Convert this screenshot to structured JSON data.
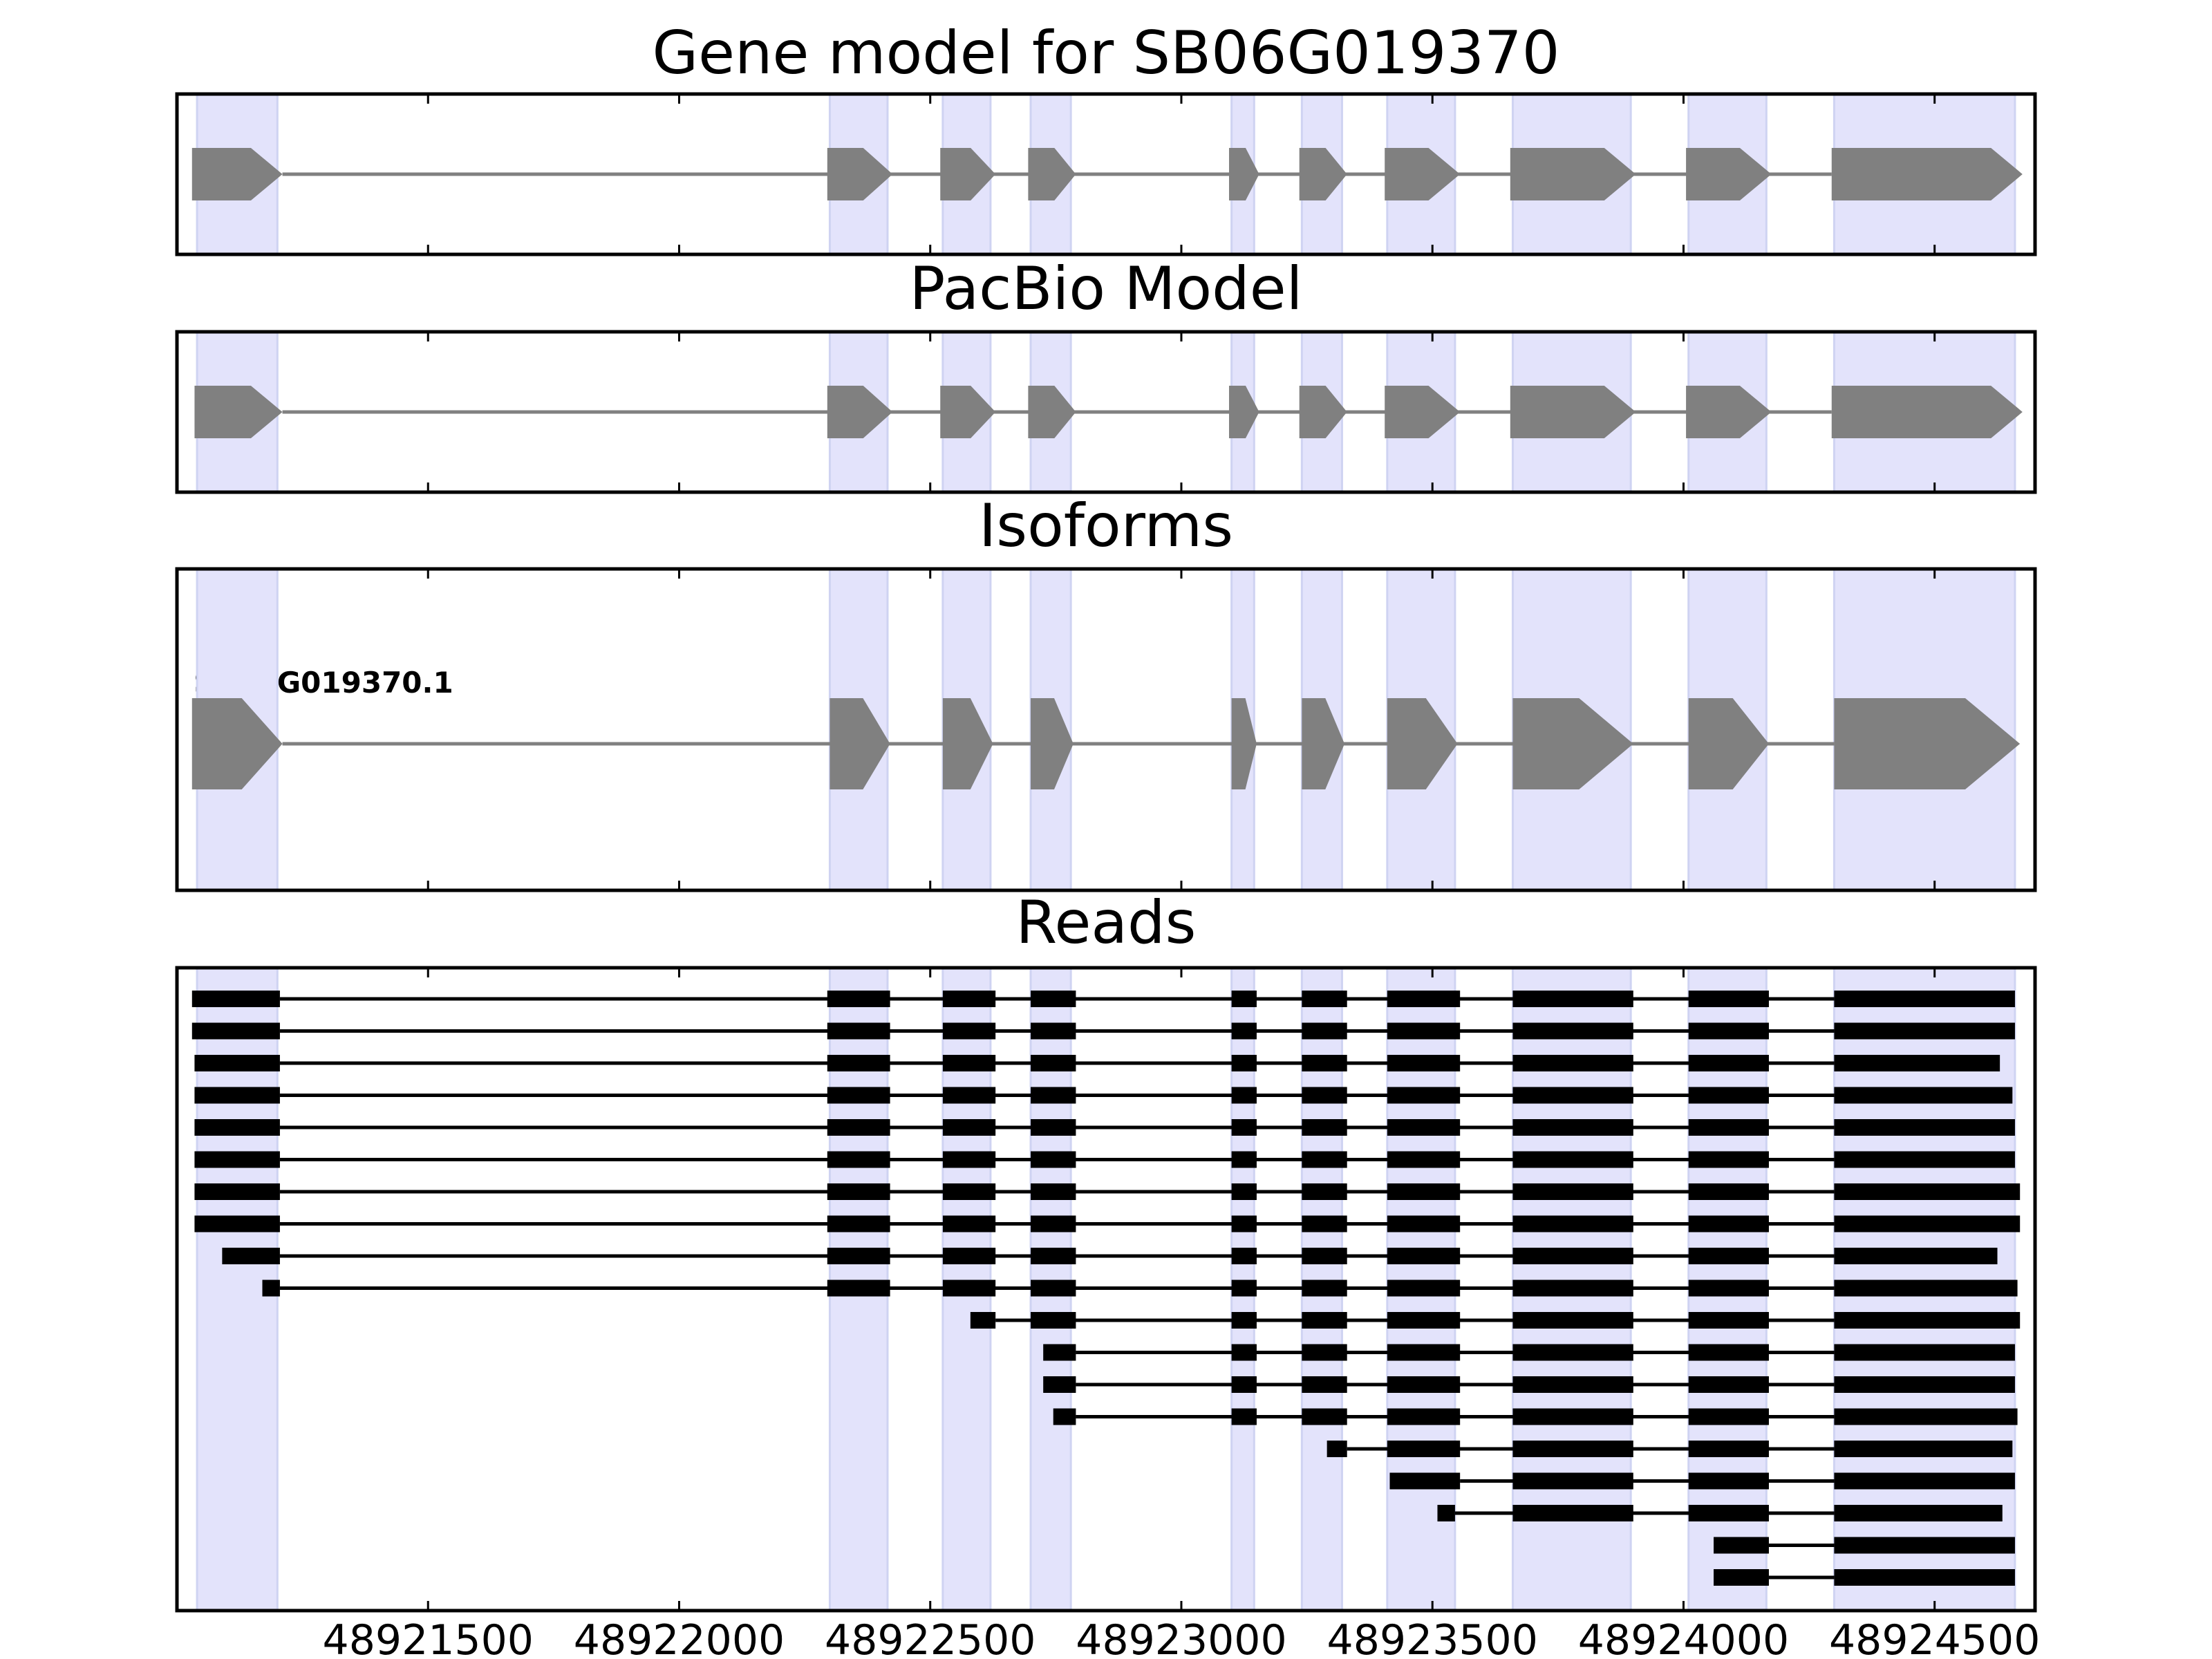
{
  "chart_data": {
    "type": "gene-structure",
    "x_ticks": [
      48921500,
      48922000,
      48922500,
      48923000,
      48923500,
      48924000,
      48924500
    ],
    "x_tick_labels": [
      "48921500",
      "48922000",
      "48922500",
      "48923000",
      "48923500",
      "48924000",
      "48924500"
    ],
    "highlight_regions": [
      [
        48921040,
        48921200
      ],
      [
        48922300,
        48922415
      ],
      [
        48922525,
        48922620
      ],
      [
        48922700,
        48922780
      ],
      [
        48923100,
        48923145
      ],
      [
        48923240,
        48923320
      ],
      [
        48923410,
        48923545
      ],
      [
        48923660,
        48923895
      ],
      [
        48924010,
        48924165
      ],
      [
        48924300,
        48924660
      ]
    ],
    "panels": [
      {
        "title": "Gene model for SB06G019370",
        "exons": [
          [
            48921030,
            48921210
          ],
          [
            48922295,
            48922425
          ],
          [
            48922520,
            48922630
          ],
          [
            48922695,
            48922790
          ],
          [
            48923095,
            48923155
          ],
          [
            48923235,
            48923330
          ],
          [
            48923405,
            48923555
          ],
          [
            48923655,
            48923905
          ],
          [
            48924005,
            48924175
          ],
          [
            48924295,
            48924675
          ]
        ]
      },
      {
        "title": "PacBio Model",
        "exons": [
          [
            48921035,
            48921210
          ],
          [
            48922295,
            48922425
          ],
          [
            48922520,
            48922630
          ],
          [
            48922695,
            48922790
          ],
          [
            48923095,
            48923155
          ],
          [
            48923235,
            48923330
          ],
          [
            48923405,
            48923555
          ],
          [
            48923655,
            48923905
          ],
          [
            48924005,
            48924175
          ],
          [
            48924295,
            48924675
          ]
        ]
      },
      {
        "title": "Isoforms",
        "isoform_label": "SB06G019370.1",
        "exons": [
          [
            48921030,
            48921210
          ],
          [
            48922300,
            48922420
          ],
          [
            48922525,
            48922625
          ],
          [
            48922700,
            48922785
          ],
          [
            48923100,
            48923150
          ],
          [
            48923240,
            48923325
          ],
          [
            48923410,
            48923550
          ],
          [
            48923660,
            48923900
          ],
          [
            48924010,
            48924170
          ],
          [
            48924300,
            48924670
          ]
        ]
      },
      {
        "title": "Reads",
        "reads": [
          [
            [
              48921030,
              48921205
            ],
            [
              48922295,
              48922420
            ],
            [
              48922525,
              48922630
            ],
            [
              48922700,
              48922790
            ],
            [
              48923100,
              48923150
            ],
            [
              48923240,
              48923330
            ],
            [
              48923410,
              48923555
            ],
            [
              48923660,
              48923900
            ],
            [
              48924010,
              48924170
            ],
            [
              48924300,
              48924660
            ]
          ],
          [
            [
              48921030,
              48921205
            ],
            [
              48922295,
              48922420
            ],
            [
              48922525,
              48922630
            ],
            [
              48922700,
              48922790
            ],
            [
              48923100,
              48923150
            ],
            [
              48923240,
              48923330
            ],
            [
              48923410,
              48923555
            ],
            [
              48923660,
              48923900
            ],
            [
              48924010,
              48924170
            ],
            [
              48924300,
              48924660
            ]
          ],
          [
            [
              48921035,
              48921205
            ],
            [
              48922295,
              48922420
            ],
            [
              48922525,
              48922630
            ],
            [
              48922700,
              48922790
            ],
            [
              48923100,
              48923150
            ],
            [
              48923240,
              48923330
            ],
            [
              48923410,
              48923555
            ],
            [
              48923660,
              48923900
            ],
            [
              48924010,
              48924170
            ],
            [
              48924300,
              48924630
            ]
          ],
          [
            [
              48921035,
              48921205
            ],
            [
              48922295,
              48922420
            ],
            [
              48922525,
              48922630
            ],
            [
              48922700,
              48922790
            ],
            [
              48923100,
              48923150
            ],
            [
              48923240,
              48923330
            ],
            [
              48923410,
              48923555
            ],
            [
              48923660,
              48923900
            ],
            [
              48924010,
              48924170
            ],
            [
              48924300,
              48924655
            ]
          ],
          [
            [
              48921035,
              48921205
            ],
            [
              48922295,
              48922420
            ],
            [
              48922525,
              48922630
            ],
            [
              48922700,
              48922790
            ],
            [
              48923100,
              48923150
            ],
            [
              48923240,
              48923330
            ],
            [
              48923410,
              48923555
            ],
            [
              48923660,
              48923900
            ],
            [
              48924010,
              48924170
            ],
            [
              48924300,
              48924660
            ]
          ],
          [
            [
              48921035,
              48921205
            ],
            [
              48922295,
              48922420
            ],
            [
              48922525,
              48922630
            ],
            [
              48922700,
              48922790
            ],
            [
              48923100,
              48923150
            ],
            [
              48923240,
              48923330
            ],
            [
              48923410,
              48923555
            ],
            [
              48923660,
              48923900
            ],
            [
              48924010,
              48924170
            ],
            [
              48924300,
              48924660
            ]
          ],
          [
            [
              48921035,
              48921205
            ],
            [
              48922295,
              48922420
            ],
            [
              48922525,
              48922630
            ],
            [
              48922700,
              48922790
            ],
            [
              48923100,
              48923150
            ],
            [
              48923240,
              48923330
            ],
            [
              48923410,
              48923555
            ],
            [
              48923660,
              48923900
            ],
            [
              48924010,
              48924170
            ],
            [
              48924300,
              48924670
            ]
          ],
          [
            [
              48921035,
              48921205
            ],
            [
              48922295,
              48922420
            ],
            [
              48922525,
              48922630
            ],
            [
              48922700,
              48922790
            ],
            [
              48923100,
              48923150
            ],
            [
              48923240,
              48923330
            ],
            [
              48923410,
              48923555
            ],
            [
              48923660,
              48923900
            ],
            [
              48924010,
              48924170
            ],
            [
              48924300,
              48924670
            ]
          ],
          [
            [
              48921090,
              48921205
            ],
            [
              48922295,
              48922420
            ],
            [
              48922525,
              48922630
            ],
            [
              48922700,
              48922790
            ],
            [
              48923100,
              48923150
            ],
            [
              48923240,
              48923330
            ],
            [
              48923410,
              48923555
            ],
            [
              48923660,
              48923900
            ],
            [
              48924010,
              48924170
            ],
            [
              48924300,
              48924625
            ]
          ],
          [
            [
              48921170,
              48921205
            ],
            [
              48922295,
              48922420
            ],
            [
              48922525,
              48922630
            ],
            [
              48922700,
              48922790
            ],
            [
              48923100,
              48923150
            ],
            [
              48923240,
              48923330
            ],
            [
              48923410,
              48923555
            ],
            [
              48923660,
              48923900
            ],
            [
              48924010,
              48924170
            ],
            [
              48924300,
              48924665
            ]
          ],
          [
            [
              48922580,
              48922630
            ],
            [
              48922700,
              48922790
            ],
            [
              48923100,
              48923150
            ],
            [
              48923240,
              48923330
            ],
            [
              48923410,
              48923555
            ],
            [
              48923660,
              48923900
            ],
            [
              48924010,
              48924170
            ],
            [
              48924300,
              48924670
            ]
          ],
          [
            [
              48922725,
              48922790
            ],
            [
              48923100,
              48923150
            ],
            [
              48923240,
              48923330
            ],
            [
              48923410,
              48923555
            ],
            [
              48923660,
              48923900
            ],
            [
              48924010,
              48924170
            ],
            [
              48924300,
              48924660
            ]
          ],
          [
            [
              48922725,
              48922790
            ],
            [
              48923100,
              48923150
            ],
            [
              48923240,
              48923330
            ],
            [
              48923410,
              48923555
            ],
            [
              48923660,
              48923900
            ],
            [
              48924010,
              48924170
            ],
            [
              48924300,
              48924660
            ]
          ],
          [
            [
              48922745,
              48922790
            ],
            [
              48923100,
              48923150
            ],
            [
              48923240,
              48923330
            ],
            [
              48923410,
              48923555
            ],
            [
              48923660,
              48923900
            ],
            [
              48924010,
              48924170
            ],
            [
              48924300,
              48924665
            ]
          ],
          [
            [
              48923290,
              48923330
            ],
            [
              48923410,
              48923555
            ],
            [
              48923660,
              48923900
            ],
            [
              48924010,
              48924170
            ],
            [
              48924300,
              48924655
            ]
          ],
          [
            [
              48923415,
              48923555
            ],
            [
              48923660,
              48923900
            ],
            [
              48924010,
              48924170
            ],
            [
              48924300,
              48924660
            ]
          ],
          [
            [
              48923510,
              48923545
            ],
            [
              48923660,
              48923900
            ],
            [
              48924010,
              48924170
            ],
            [
              48924300,
              48924635
            ]
          ],
          [
            [
              48924060,
              48924170
            ],
            [
              48924300,
              48924660
            ]
          ],
          [
            [
              48924060,
              48924170
            ],
            [
              48924300,
              48924660
            ]
          ]
        ]
      }
    ],
    "colors": {
      "exon": "#808080",
      "intron": "#808080",
      "read": "#000000",
      "highlight": "#e3e3fb",
      "highlight_edge": "#cfd3f2",
      "frame": "#000000"
    }
  }
}
